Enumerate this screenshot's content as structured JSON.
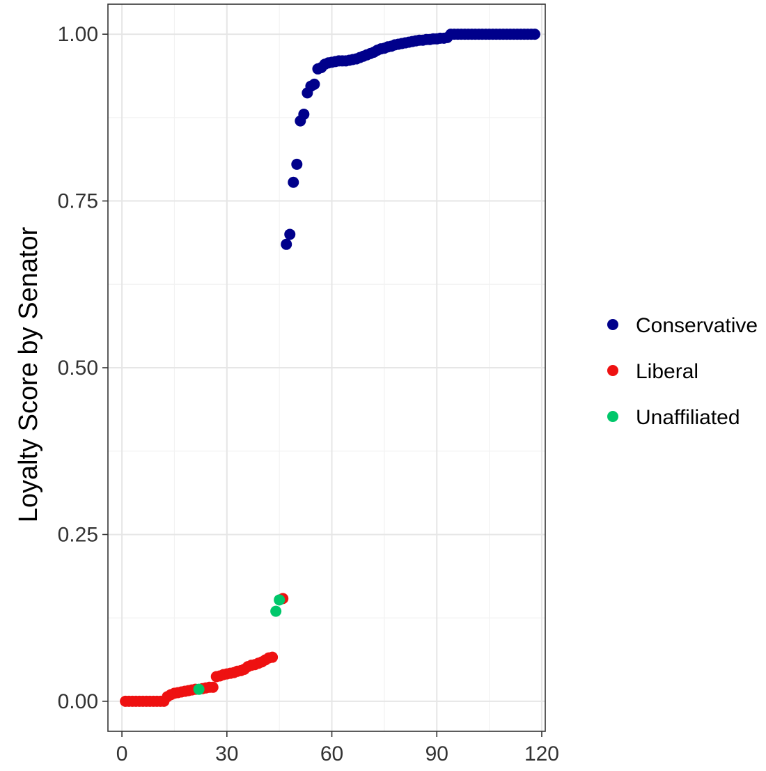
{
  "chart_data": {
    "type": "scatter",
    "title": "",
    "xlabel": "",
    "ylabel": "Loyalty Score by Senator",
    "xlim": [
      -4,
      121
    ],
    "ylim": [
      -0.045,
      1.045
    ],
    "x_ticks": [
      0,
      30,
      60,
      90,
      120
    ],
    "x_tick_labels": [
      "0",
      "30",
      "60",
      "90",
      "120"
    ],
    "y_ticks": [
      0,
      0.25,
      0.5,
      0.75,
      1.0
    ],
    "y_tick_labels": [
      "0.00",
      "0.25",
      "0.50",
      "0.75",
      "1.00"
    ],
    "grid": true,
    "legend_position": "right",
    "colors": {
      "Conservative": "#00008b",
      "Liberal": "#ee1111",
      "Unaffiliated": "#00c76a"
    },
    "series": [
      {
        "name": "Liberal",
        "color": "#ee1111",
        "points": [
          [
            1,
            0
          ],
          [
            2,
            0
          ],
          [
            3,
            0
          ],
          [
            4,
            0
          ],
          [
            5,
            0
          ],
          [
            6,
            0
          ],
          [
            7,
            0
          ],
          [
            8,
            0
          ],
          [
            9,
            0
          ],
          [
            10,
            0
          ],
          [
            11,
            0
          ],
          [
            12,
            0
          ],
          [
            13,
            0.007
          ],
          [
            14,
            0.01
          ],
          [
            15,
            0.012
          ],
          [
            16,
            0.013
          ],
          [
            17,
            0.014
          ],
          [
            18,
            0.015
          ],
          [
            19,
            0.016
          ],
          [
            20,
            0.017
          ],
          [
            21,
            0.018
          ],
          [
            23,
            0.019
          ],
          [
            24,
            0.02
          ],
          [
            25,
            0.021
          ],
          [
            26,
            0.021
          ],
          [
            27,
            0.037
          ],
          [
            28,
            0.038
          ],
          [
            29,
            0.04
          ],
          [
            30,
            0.041
          ],
          [
            31,
            0.042
          ],
          [
            32,
            0.043
          ],
          [
            33,
            0.045
          ],
          [
            34,
            0.046
          ],
          [
            35,
            0.048
          ],
          [
            36,
            0.052
          ],
          [
            37,
            0.054
          ],
          [
            38,
            0.055
          ],
          [
            39,
            0.057
          ],
          [
            40,
            0.059
          ],
          [
            41,
            0.062
          ],
          [
            42,
            0.065
          ],
          [
            43,
            0.066
          ],
          [
            46,
            0.154
          ]
        ]
      },
      {
        "name": "Unaffiliated",
        "color": "#00c76a",
        "points": [
          [
            22,
            0.018
          ],
          [
            44,
            0.135
          ],
          [
            45,
            0.152
          ]
        ]
      },
      {
        "name": "Conservative",
        "color": "#00008b",
        "points": [
          [
            47,
            0.685
          ],
          [
            48,
            0.7
          ],
          [
            49,
            0.778
          ],
          [
            50,
            0.805
          ],
          [
            51,
            0.87
          ],
          [
            52,
            0.88
          ],
          [
            53,
            0.912
          ],
          [
            54,
            0.922
          ],
          [
            55,
            0.925
          ],
          [
            56,
            0.948
          ],
          [
            57,
            0.95
          ],
          [
            58,
            0.955
          ],
          [
            59,
            0.957
          ],
          [
            60,
            0.958
          ],
          [
            61,
            0.959
          ],
          [
            62,
            0.96
          ],
          [
            63,
            0.96
          ],
          [
            64,
            0.96
          ],
          [
            65,
            0.961
          ],
          [
            66,
            0.962
          ],
          [
            67,
            0.963
          ],
          [
            68,
            0.965
          ],
          [
            69,
            0.967
          ],
          [
            70,
            0.969
          ],
          [
            71,
            0.971
          ],
          [
            72,
            0.973
          ],
          [
            73,
            0.976
          ],
          [
            74,
            0.978
          ],
          [
            75,
            0.979
          ],
          [
            76,
            0.981
          ],
          [
            77,
            0.982
          ],
          [
            78,
            0.984
          ],
          [
            79,
            0.985
          ],
          [
            80,
            0.986
          ],
          [
            81,
            0.987
          ],
          [
            82,
            0.988
          ],
          [
            83,
            0.989
          ],
          [
            84,
            0.99
          ],
          [
            85,
            0.991
          ],
          [
            86,
            0.991
          ],
          [
            87,
            0.992
          ],
          [
            88,
            0.992
          ],
          [
            89,
            0.993
          ],
          [
            90,
            0.993
          ],
          [
            91,
            0.994
          ],
          [
            92,
            0.994
          ],
          [
            93,
            0.995
          ],
          [
            94,
            1
          ],
          [
            95,
            1
          ],
          [
            96,
            1
          ],
          [
            97,
            1
          ],
          [
            98,
            1
          ],
          [
            99,
            1
          ],
          [
            100,
            1
          ],
          [
            101,
            1
          ],
          [
            102,
            1
          ],
          [
            103,
            1
          ],
          [
            104,
            1
          ],
          [
            105,
            1
          ],
          [
            106,
            1
          ],
          [
            107,
            1
          ],
          [
            108,
            1
          ],
          [
            109,
            1
          ],
          [
            110,
            1
          ],
          [
            111,
            1
          ],
          [
            112,
            1
          ],
          [
            113,
            1
          ],
          [
            114,
            1
          ],
          [
            115,
            1
          ],
          [
            116,
            1
          ],
          [
            117,
            1
          ],
          [
            118,
            1
          ]
        ]
      }
    ],
    "legend": [
      {
        "label": "Conservative",
        "color": "#00008b"
      },
      {
        "label": "Liberal",
        "color": "#ee1111"
      },
      {
        "label": "Unaffiliated",
        "color": "#00c76a"
      }
    ]
  }
}
